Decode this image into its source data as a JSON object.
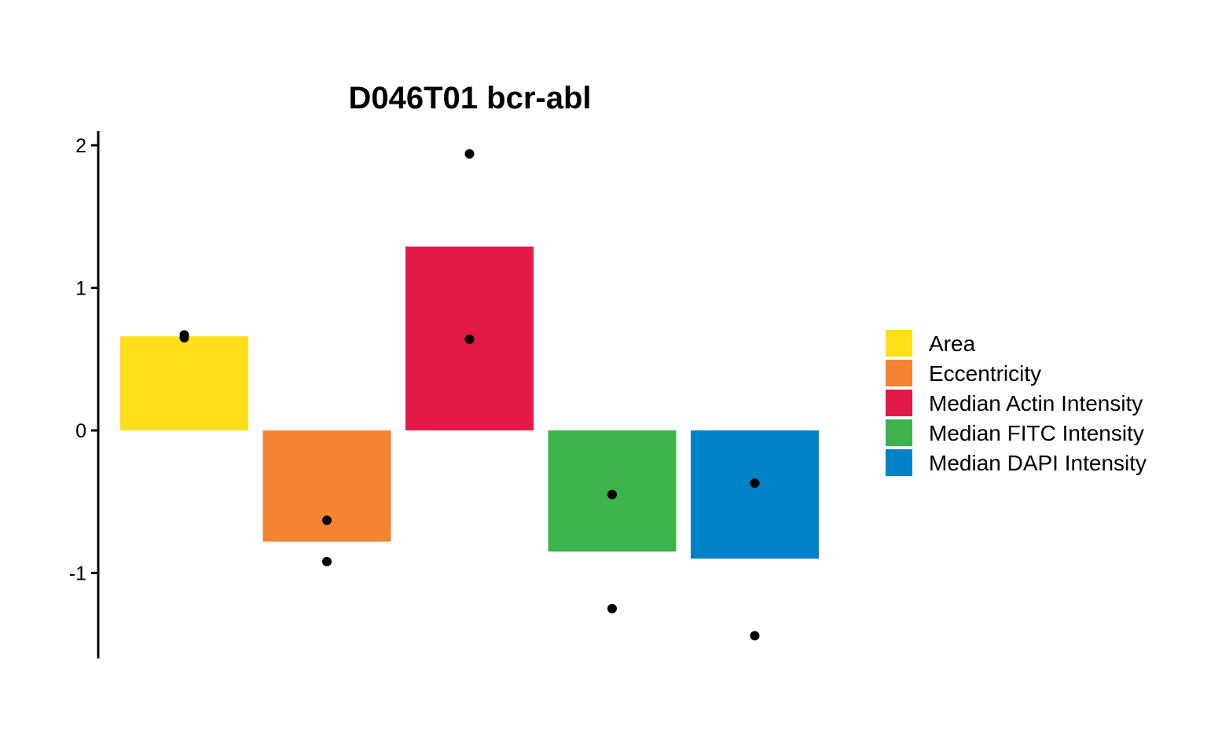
{
  "chart_data": {
    "type": "bar",
    "title": "D046T01 bcr-abl",
    "xlabel": "",
    "ylabel": "",
    "ylim": [
      -1.6,
      2.1
    ],
    "yticks": [
      2,
      1,
      0,
      -1
    ],
    "ytick_labels": [
      "2",
      "1",
      "0",
      "-1"
    ],
    "grid": false,
    "legend_position": "right",
    "categories": [
      "Area",
      "Eccentricity",
      "Median Actin Intensity",
      "Median FITC Intensity",
      "Median DAPI Intensity"
    ],
    "colors": [
      "#FDE01A",
      "#F58432",
      "#E31A48",
      "#3CB44B",
      "#0082C8"
    ],
    "values": [
      0.66,
      -0.78,
      1.29,
      -0.85,
      -0.9
    ],
    "points": [
      [
        0.67,
        0.65
      ],
      [
        -0.63,
        -0.92
      ],
      [
        1.94,
        0.64
      ],
      [
        -0.45,
        -1.25
      ],
      [
        -0.37,
        -1.44
      ]
    ]
  }
}
